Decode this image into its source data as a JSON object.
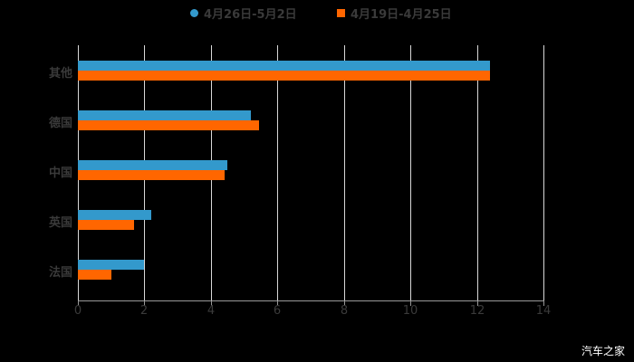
{
  "chart_data": {
    "type": "bar",
    "orientation": "horizontal",
    "title": "",
    "xlabel": "",
    "ylabel": "",
    "categories": [
      "其他",
      "德国",
      "中国",
      "英国",
      "法国"
    ],
    "series": [
      {
        "name": "4月26日-5月2日",
        "color": "#3399cc",
        "values": [
          12.4,
          5.2,
          4.5,
          2.2,
          2.0
        ]
      },
      {
        "name": "4月19日-4月25日",
        "color": "#ff6600",
        "values": [
          12.4,
          5.45,
          4.4,
          1.7,
          1.0
        ]
      }
    ],
    "xlim": [
      0,
      14
    ],
    "x_ticks": [
      "0",
      "2",
      "4",
      "6",
      "8",
      "10",
      "12",
      "14"
    ],
    "grid": true,
    "legend_position": "top"
  },
  "legend": {
    "series1": "4月26日-5月2日",
    "series2": "4月19日-4月25日"
  },
  "watermark": "汽车之家"
}
